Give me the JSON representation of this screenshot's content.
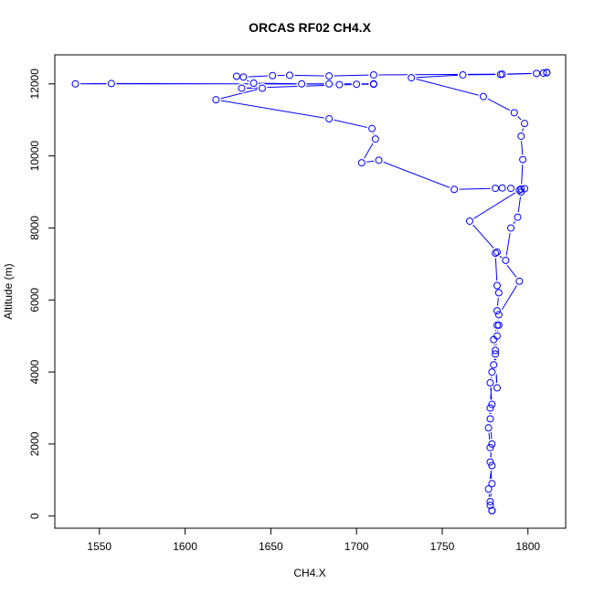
{
  "chart_data": {
    "type": "line",
    "title": "ORCAS RF02 CH4.X",
    "x_label": "CH4.X",
    "y_label": "Altitude (m)",
    "color": "#0000ff",
    "markers": true,
    "xlim": [
      1524,
      1822
    ],
    "ylim": [
      -337,
      12807
    ],
    "xticks": [
      1550,
      1600,
      1650,
      1700,
      1750,
      1800
    ],
    "yticks": [
      0,
      2000,
      4000,
      6000,
      8000,
      10000,
      12000
    ],
    "x": [
      1779,
      1778,
      1779,
      1778,
      1779,
      1778,
      1779,
      1778,
      1780,
      1781,
      1782,
      1783,
      1782,
      1783,
      1782,
      1781,
      1787,
      1790,
      1794,
      1796,
      1797,
      1796,
      1798,
      1792,
      1774,
      1732,
      1762,
      1784,
      1805,
      1811,
      1811,
      1809,
      1785,
      1710,
      1684,
      1661,
      1651,
      1634,
      1630,
      1640,
      1668,
      1684,
      1690,
      1700,
      1710,
      1557,
      1536,
      1710,
      1633,
      1645,
      1618,
      1684,
      1709,
      1711,
      1703,
      1713,
      1757,
      1781,
      1785,
      1790,
      1796,
      1798,
      1795,
      1766,
      1782,
      1795,
      1783,
      1782,
      1780,
      1782,
      1781,
      1779,
      1778,
      1777,
      1778,
      1779,
      1777,
      1778,
      1779
    ],
    "y": [
      150,
      400,
      900,
      1500,
      2000,
      2700,
      3100,
      3700,
      4200,
      4600,
      5000,
      5300,
      5700,
      6200,
      6400,
      7300,
      7100,
      8000,
      8300,
      9000,
      9900,
      10550,
      10900,
      11200,
      11650,
      12170,
      12250,
      12260,
      12290,
      12310,
      12320,
      12300,
      12270,
      12250,
      12220,
      12240,
      12230,
      12190,
      12210,
      12020,
      12000,
      12000,
      11980,
      11990,
      11990,
      12010,
      12000,
      12000,
      11880,
      11880,
      11560,
      11030,
      10760,
      10470,
      9810,
      9880,
      9070,
      9100,
      9110,
      9100,
      9080,
      9090,
      9050,
      8190,
      7330,
      6520,
      5590,
      5300,
      4900,
      3560,
      4500,
      4000,
      3000,
      2450,
      1900,
      1400,
      750,
      300,
      150
    ]
  }
}
